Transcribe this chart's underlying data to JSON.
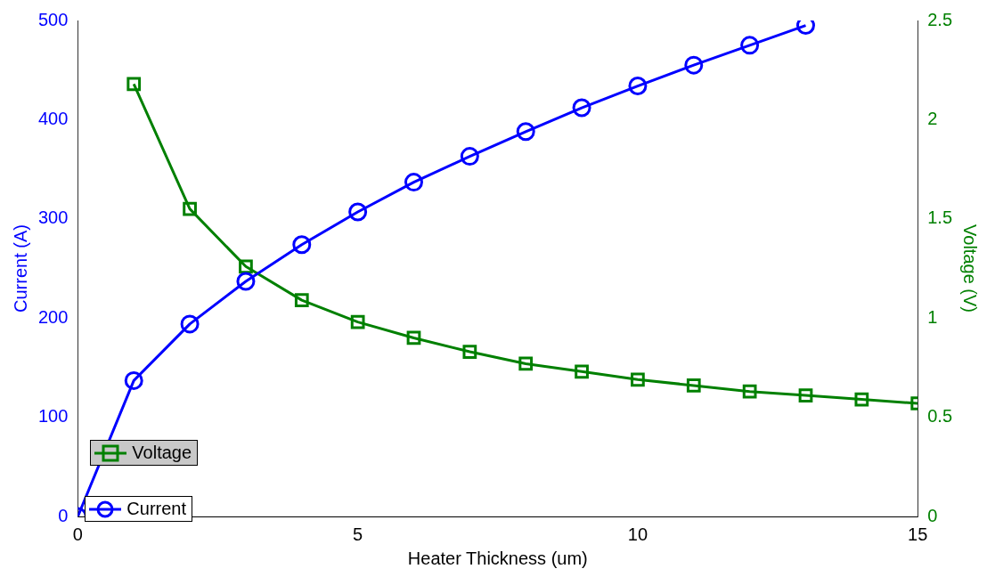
{
  "chart_data": {
    "type": "line",
    "xlabel": "Heater Thickness (um)",
    "ylabel": "Current (A)",
    "y2label": "Voltage (V)",
    "x": [
      0,
      1,
      2,
      3,
      4,
      5,
      6,
      7,
      8,
      9,
      10,
      11,
      12,
      13,
      14,
      15
    ],
    "series": [
      {
        "name": "Current",
        "color": "#0000ff",
        "marker": "circle",
        "values": [
          0,
          137,
          194,
          237,
          274,
          307,
          337,
          363,
          388,
          412,
          434,
          455,
          475,
          495,
          null,
          null
        ]
      },
      {
        "name": "Voltage",
        "color": "#008000",
        "marker": "square",
        "axis": "y2",
        "values": [
          null,
          2.18,
          1.55,
          1.26,
          1.09,
          0.98,
          0.9,
          0.83,
          0.77,
          0.73,
          0.69,
          0.66,
          0.63,
          0.61,
          0.59,
          0.57
        ]
      }
    ],
    "xlim": [
      0,
      15
    ],
    "xticks": [
      0,
      5,
      10,
      15
    ],
    "ylim": [
      0,
      500
    ],
    "yticks": [
      0,
      100,
      200,
      300,
      400,
      500
    ],
    "y2lim": [
      0,
      2.5
    ],
    "y2ticks": [
      0,
      0.5,
      1,
      1.5,
      2,
      2.5
    ],
    "grid": false,
    "legend": "bottom left",
    "line_style": "solid"
  }
}
